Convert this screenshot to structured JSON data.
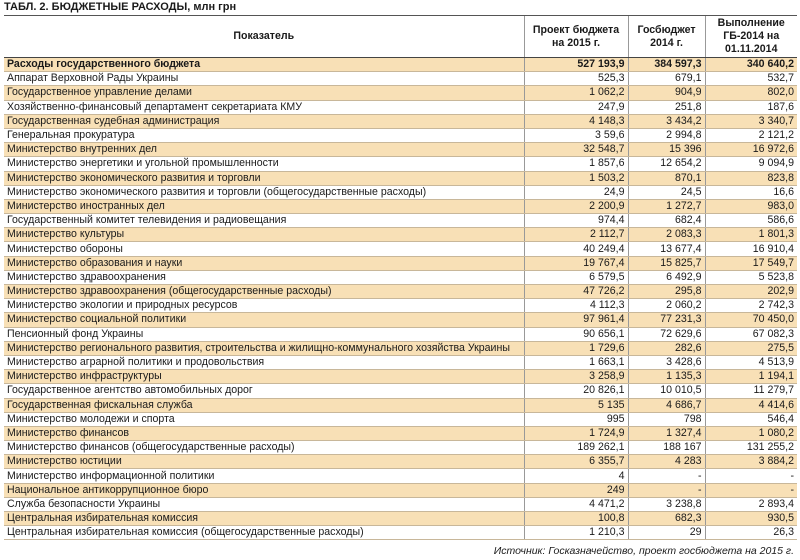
{
  "title": "ТАБЛ. 2. БЮДЖЕТНЫЕ РАСХОДЫ, млн грн",
  "table": {
    "headers": [
      "Показатель",
      "Проект бюджета на 2015 г.",
      "Госбюджет 2014 г.",
      "Выполнение ГБ-2014 на 01.11.2014"
    ],
    "rows": [
      [
        "Расходы государственного бюджета",
        "527 193,9",
        "384 597,3",
        "340 640,2"
      ],
      [
        "Аппарат Верховной Рады Украины",
        "525,3",
        "679,1",
        "532,7"
      ],
      [
        "Государственное управление делами",
        "1 062,2",
        "904,9",
        "802,0"
      ],
      [
        "Хозяйственно-финансовый департамент секретариата КМУ",
        "247,9",
        "251,8",
        "187,6"
      ],
      [
        "Государственная судебная администрация",
        "4 148,3",
        "3 434,2",
        "3 340,7"
      ],
      [
        "Генеральная прокуратура",
        "3 59,6",
        "2 994,8",
        "2 121,2"
      ],
      [
        "Министерство внутренних дел",
        "32 548,7",
        "15 396",
        "16 972,6"
      ],
      [
        "Министерство энергетики и угольной промышленности",
        "1 857,6",
        "12 654,2",
        "9 094,9"
      ],
      [
        "Министерство экономического развития и торговли",
        "1 503,2",
        "870,1",
        "823,8"
      ],
      [
        "Министерство экономического развития и торговли (общегосударственные расходы)",
        "24,9",
        "24,5",
        "16,6"
      ],
      [
        "Министерство иностранных дел",
        "2 200,9",
        "1 272,7",
        "983,0"
      ],
      [
        "Государственный комитет телевидения и радиовещания",
        "974,4",
        "682,4",
        "586,6"
      ],
      [
        "Министерство культуры",
        "2 112,7",
        "2 083,3",
        "1 801,3"
      ],
      [
        "Министерство обороны",
        "40 249,4",
        "13 677,4",
        "16 910,4"
      ],
      [
        "Министерство образования и науки",
        "19 767,4",
        "15 825,7",
        "17 549,7"
      ],
      [
        "Министерство здравоохранения",
        "6 579,5",
        "6 492,9",
        "5 523,8"
      ],
      [
        "Министерство здравоохранения (общегосударственные расходы)",
        "47 726,2",
        "295,8",
        "202,9"
      ],
      [
        "Министерство экологии и природных ресурсов",
        "4 112,3",
        "2 060,2",
        "2 742,3"
      ],
      [
        "Министерство социальной политики",
        "97 961,4",
        "77 231,3",
        "70 450,0"
      ],
      [
        "Пенсионный фонд Украины",
        "90 656,1",
        "72 629,6",
        "67 082,3"
      ],
      [
        "Министерство регионального развития, строительства и жилищно-коммунального хозяйства Украины",
        "1 729,6",
        "282,6",
        "275,5"
      ],
      [
        "Министерство аграрной политики и продовольствия",
        "1 663,1",
        "3 428,6",
        "4 513,9"
      ],
      [
        "Министерство инфраструктуры",
        "3 258,9",
        "1 135,3",
        "1 194,1"
      ],
      [
        "Государственное агентство автомобильных дорог",
        "20 826,1",
        "10 010,5",
        "11 279,7"
      ],
      [
        "Государственная фискальная служба",
        "5 135",
        "4 686,7",
        "4 414,6"
      ],
      [
        "Министерство молодежи и спорта",
        "995",
        "798",
        "546,4"
      ],
      [
        "Министерство финансов",
        "1 724,9",
        "1 327,4",
        "1 080,2"
      ],
      [
        "Министерство финансов (общегосударственные расходы)",
        "189 262,1",
        "188 167",
        "131 255,2"
      ],
      [
        "Министерство юстиции",
        "6 355,7",
        "4 283",
        "3 884,2"
      ],
      [
        "Министерство информационной политики",
        "4",
        "-",
        "-"
      ],
      [
        "Национальное антикоррупционное бюро",
        "249",
        "-",
        "-"
      ],
      [
        "Служба безопасности Украины",
        "4 471,2",
        "3 238,8",
        "2 893,4"
      ],
      [
        "Центральная избирательная комиссия",
        "100,8",
        "682,3",
        "930,5"
      ],
      [
        "Центральная избирательная комиссия (общегосударственные расходы)",
        "1 210,3",
        "29",
        "26,3"
      ]
    ]
  },
  "source": "Источник: Госказначейство, проект госбюджета на 2015 г."
}
